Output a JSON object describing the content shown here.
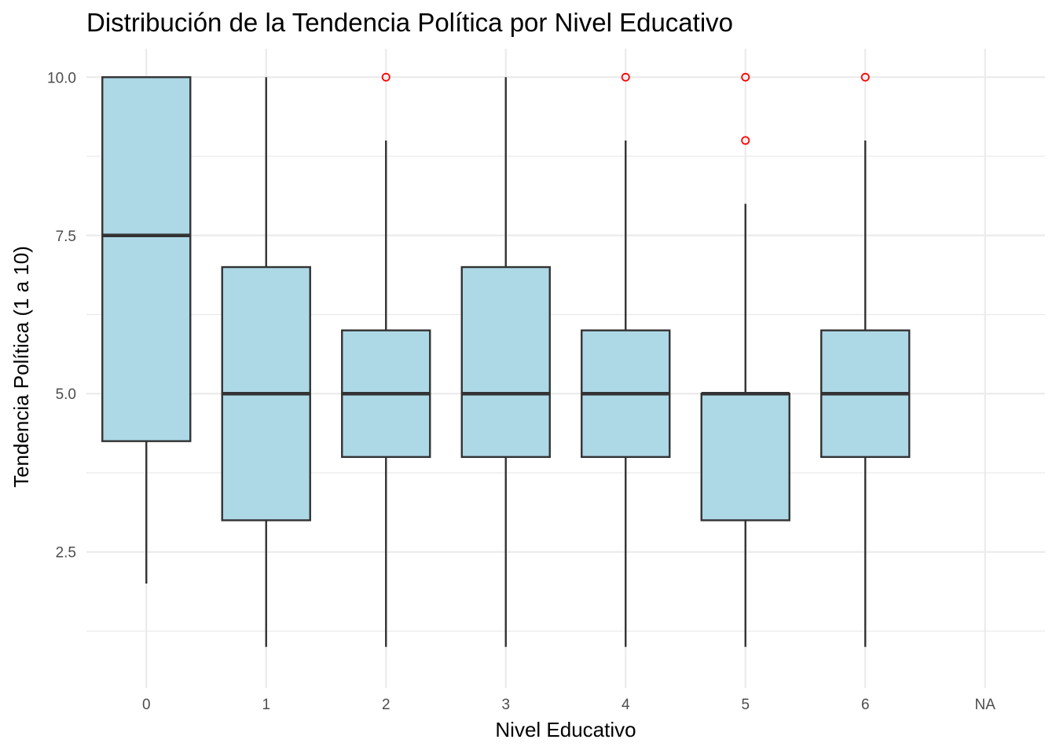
{
  "chart_data": {
    "type": "box",
    "title": "Distribución de la Tendencia Política por Nivel Educativo",
    "xlabel": "Nivel Educativo",
    "ylabel": "Tendencia Política (1 a 10)",
    "categories": [
      "0",
      "1",
      "2",
      "3",
      "4",
      "5",
      "6",
      "NA"
    ],
    "y_ticks": [
      2.5,
      5.0,
      7.5,
      10.0
    ],
    "y_tick_labels": [
      "2.5",
      "5.0",
      "7.5",
      "10.0"
    ],
    "ylim": [
      0.35,
      10.45
    ],
    "grid": true,
    "box_fill": "#add8e6",
    "box_line": "#333333",
    "outlier_color": "#ff0000",
    "boxes": [
      {
        "category": "0",
        "whisker_low": 2,
        "q1": 4.25,
        "median": 7.5,
        "q3": 10,
        "whisker_high": 10,
        "outliers": []
      },
      {
        "category": "1",
        "whisker_low": 1,
        "q1": 3,
        "median": 5,
        "q3": 7,
        "whisker_high": 10,
        "outliers": []
      },
      {
        "category": "2",
        "whisker_low": 1,
        "q1": 4,
        "median": 5,
        "q3": 6,
        "whisker_high": 9,
        "outliers": [
          10
        ]
      },
      {
        "category": "3",
        "whisker_low": 1,
        "q1": 4,
        "median": 5,
        "q3": 7,
        "whisker_high": 10,
        "outliers": []
      },
      {
        "category": "4",
        "whisker_low": 1,
        "q1": 4,
        "median": 5,
        "q3": 6,
        "whisker_high": 9,
        "outliers": [
          10
        ]
      },
      {
        "category": "5",
        "whisker_low": 1,
        "q1": 3,
        "median": 5,
        "q3": 5,
        "whisker_high": 8,
        "outliers": [
          9,
          10
        ]
      },
      {
        "category": "6",
        "whisker_low": 1,
        "q1": 4,
        "median": 5,
        "q3": 6,
        "whisker_high": 9,
        "outliers": [
          10
        ]
      }
    ]
  }
}
